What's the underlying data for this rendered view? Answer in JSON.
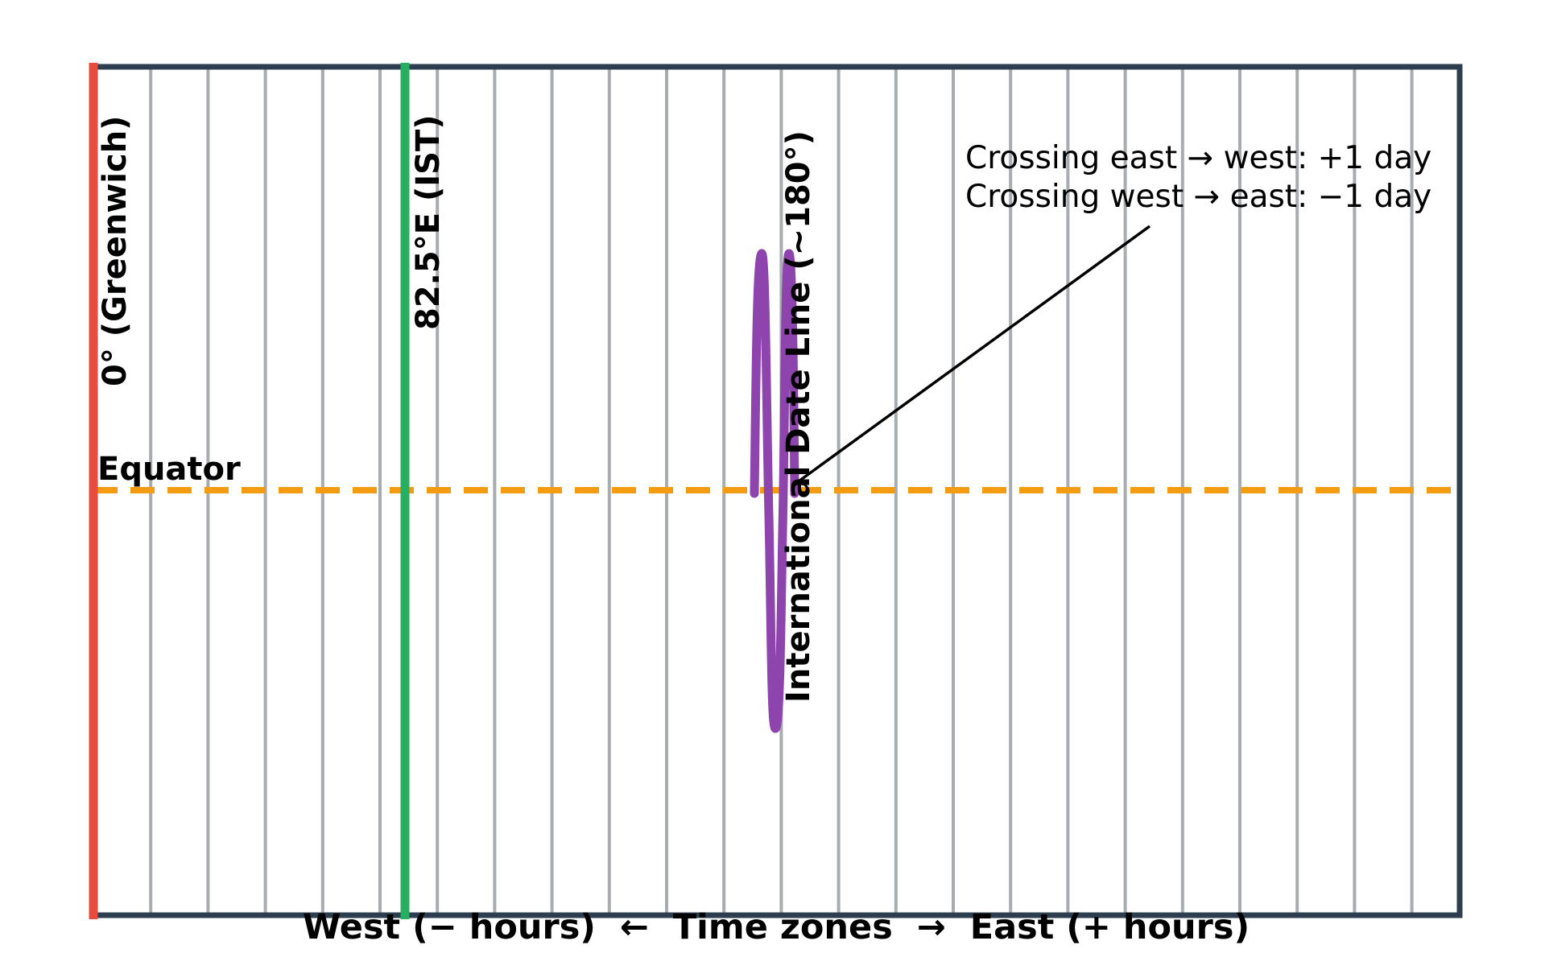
{
  "meridians": {
    "greenwich_label": "0° (Greenwich)",
    "ist_label": "82.5°E (IST)",
    "dateline_label": "International Date Line (~180°)",
    "greenwich_color": "#e74c3c",
    "ist_color": "#27ae60",
    "dateline_color": "#8e44ad",
    "zone_line_color": "#a6acaf"
  },
  "equator": {
    "label": "Equator",
    "color": "#f39c12"
  },
  "annotation": {
    "line1": "Crossing east → west: +1 day",
    "line2": "Crossing west → east: −1 day"
  },
  "axis": {
    "label": "West (− hours)  ←  Time zones  →  East (+ hours)"
  },
  "frame": {
    "color": "#2c3e50"
  },
  "zone_count": 24
}
